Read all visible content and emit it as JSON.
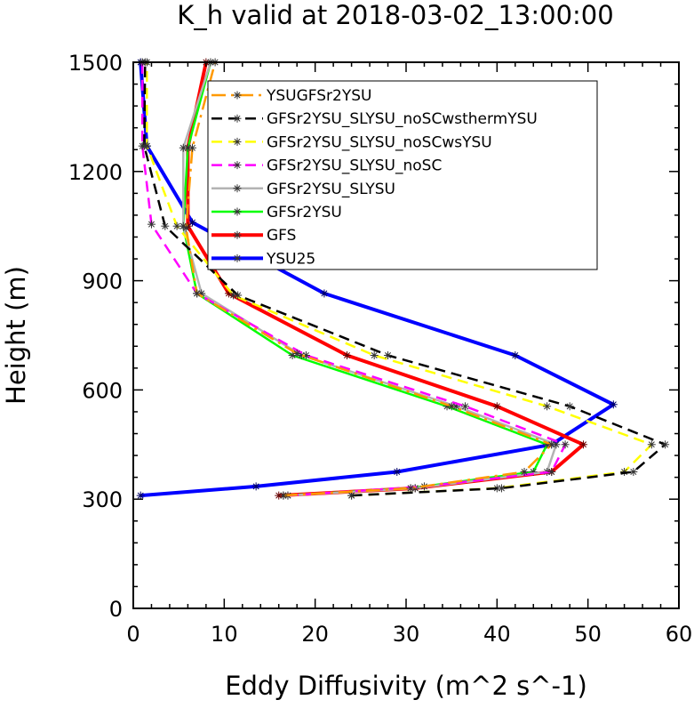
{
  "chart_data": {
    "type": "line",
    "title": "K_h valid at 2018-03-02_13:00:00",
    "xlabel": "Eddy Diffusivity (m^2 s^-1)",
    "ylabel": "Height (m)",
    "xlim": [
      0,
      60
    ],
    "ylim": [
      0,
      1500
    ],
    "xticks": [
      0,
      10,
      20,
      30,
      40,
      50,
      60
    ],
    "yticks": [
      0,
      300,
      600,
      900,
      1200,
      1500
    ],
    "grid": false,
    "legend_position": "top-center",
    "series": [
      {
        "name": "YSUGFSr2YSU",
        "color": "#ff9900",
        "dash": "dash-long",
        "x": [
          16.5,
          30.5,
          43.0,
          46.0,
          35.0,
          18.0,
          7.0,
          5.8,
          6.5,
          9.0
        ],
        "y": [
          310,
          330,
          375,
          450,
          555,
          700,
          865,
          1045,
          1265,
          1500
        ]
      },
      {
        "name": "GFSr2YSU_SLYSU_noSCwsthermYSU",
        "color": "#000000",
        "dash": "dash",
        "x": [
          24.0,
          40.5,
          55.0,
          58.5,
          48.0,
          28.0,
          11.5,
          3.5,
          1.2,
          1.3
        ],
        "y": [
          310,
          330,
          375,
          450,
          555,
          695,
          860,
          1050,
          1270,
          1500
        ]
      },
      {
        "name": "GFSr2YSU_SLYSU_noSCwsYSU",
        "color": "#ffff00",
        "dash": "dash",
        "x": [
          24.0,
          40.0,
          54.0,
          57.0,
          45.5,
          26.5,
          11.0,
          4.8,
          1.5,
          1.5
        ],
        "y": [
          310,
          330,
          375,
          450,
          555,
          695,
          860,
          1050,
          1270,
          1500
        ]
      },
      {
        "name": "GFSr2YSU_SLYSU_noSC",
        "color": "#ff00ff",
        "dash": "dash",
        "x": [
          17.0,
          32.0,
          46.0,
          47.5,
          36.5,
          19.0,
          7.0,
          2.0,
          1.0,
          1.0
        ],
        "y": [
          310,
          335,
          375,
          450,
          555,
          695,
          865,
          1055,
          1270,
          1500
        ]
      },
      {
        "name": "GFSr2YSU_SLYSU",
        "color": "#b3b3b3",
        "dash": "solid",
        "x": [
          17.0,
          31.0,
          45.5,
          46.5,
          35.5,
          18.5,
          7.5,
          5.5,
          5.5,
          8.5
        ],
        "y": [
          310,
          330,
          375,
          450,
          555,
          695,
          865,
          1050,
          1265,
          1500
        ]
      },
      {
        "name": "GFSr2YSU",
        "color": "#00ff00",
        "dash": "solid",
        "x": [
          16.5,
          30.5,
          44.0,
          45.5,
          34.5,
          17.5,
          7.0,
          5.5,
          6.0,
          8.5
        ],
        "y": [
          310,
          330,
          375,
          450,
          555,
          695,
          865,
          1050,
          1265,
          1500
        ]
      },
      {
        "name": "GFS",
        "color": "#ff0000",
        "dash": "solid",
        "x": [
          16.0,
          31.0,
          46.0,
          49.5,
          40.0,
          23.5,
          10.5,
          6.0,
          6.0,
          8.0
        ],
        "y": [
          310,
          330,
          375,
          450,
          555,
          695,
          865,
          1050,
          1265,
          1500
        ]
      },
      {
        "name": "YSU25",
        "color": "#0000ff",
        "dash": "solid",
        "x": [
          0.8,
          13.5,
          29.0,
          46.0,
          52.8,
          42.0,
          21.0,
          6.5,
          1.5,
          0.8
        ],
        "y": [
          310,
          335,
          375,
          450,
          560,
          695,
          865,
          1060,
          1270,
          1500
        ]
      }
    ]
  }
}
